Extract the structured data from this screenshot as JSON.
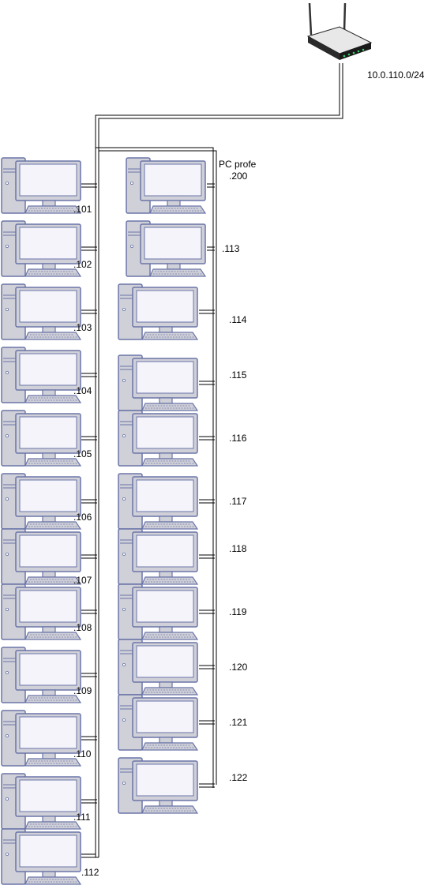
{
  "network": {
    "subnet_label": "10.0.110.0/24",
    "colors": {
      "pc_fill": "#d0d0d8",
      "pc_stroke": "#6a75a8",
      "screen_fill": "#f4f4fa",
      "cable": "#000000",
      "router_body": "#2a2a2a"
    },
    "icons": {
      "router": "wireless-router-icon",
      "pc": "desktop-pc-icon"
    }
  },
  "teacher_pc": {
    "label": "PC profe",
    "host": ".200"
  },
  "left_column": [
    {
      "host": ".101"
    },
    {
      "host": ".102"
    },
    {
      "host": ".103"
    },
    {
      "host": ".104"
    },
    {
      "host": ".105"
    },
    {
      "host": ".106"
    },
    {
      "host": ".107"
    },
    {
      "host": ".108"
    },
    {
      "host": ".109"
    },
    {
      "host": ".110"
    },
    {
      "host": ".111"
    },
    {
      "host": ".112"
    }
  ],
  "right_column": [
    {
      "host": ".113"
    },
    {
      "host": ".114"
    },
    {
      "host": ".115"
    },
    {
      "host": ".116"
    },
    {
      "host": ".117"
    },
    {
      "host": ".118"
    },
    {
      "host": ".119"
    },
    {
      "host": ".120"
    },
    {
      "host": ".121"
    },
    {
      "host": ".122"
    }
  ]
}
